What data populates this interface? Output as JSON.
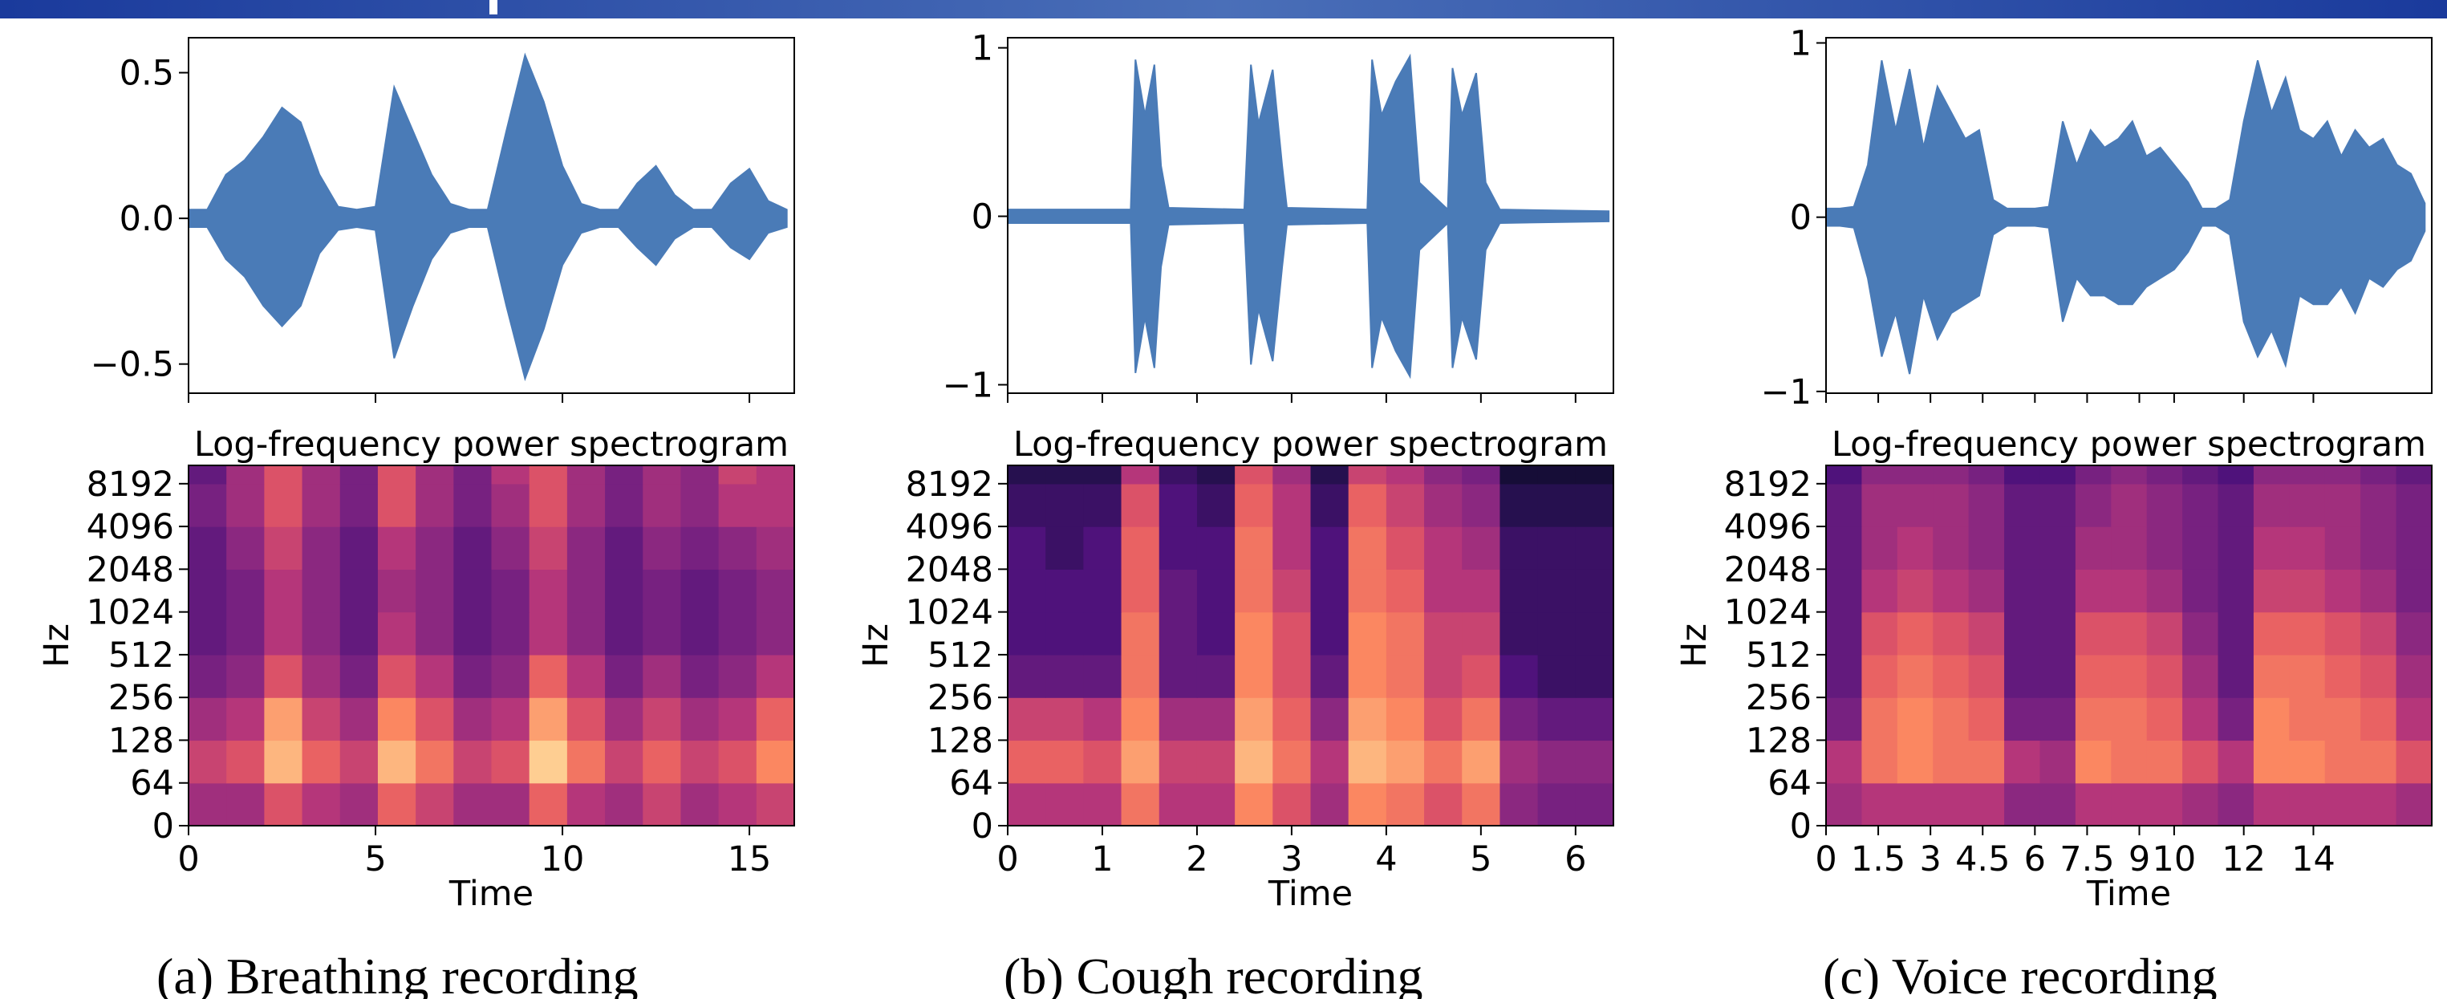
{
  "chart_data": [
    {
      "type": "band",
      "color": "#4a7bb7",
      "x": [
        0,
        0.5,
        1,
        1.5,
        2,
        2.5,
        3,
        3.5,
        4,
        4.5,
        5,
        5.5,
        6,
        6.5,
        7,
        7.5,
        8,
        8.5,
        9,
        9.5,
        10,
        10.5,
        11,
        11.5,
        12,
        12.5,
        13,
        13.5,
        14,
        14.5,
        15,
        15.5,
        16
      ],
      "upper": [
        0.03,
        0.03,
        0.15,
        0.2,
        0.28,
        0.38,
        0.33,
        0.15,
        0.04,
        0.03,
        0.04,
        0.45,
        0.3,
        0.15,
        0.05,
        0.03,
        0.03,
        0.3,
        0.56,
        0.4,
        0.18,
        0.05,
        0.03,
        0.03,
        0.12,
        0.18,
        0.08,
        0.03,
        0.03,
        0.12,
        0.17,
        0.06,
        0.03
      ],
      "lower": [
        -0.03,
        -0.03,
        -0.14,
        -0.2,
        -0.3,
        -0.37,
        -0.3,
        -0.12,
        -0.04,
        -0.03,
        -0.04,
        -0.48,
        -0.3,
        -0.14,
        -0.05,
        -0.03,
        -0.03,
        -0.3,
        -0.55,
        -0.38,
        -0.16,
        -0.05,
        -0.03,
        -0.03,
        -0.1,
        -0.16,
        -0.07,
        -0.03,
        -0.03,
        -0.1,
        -0.14,
        -0.05,
        -0.03
      ],
      "xlim": [
        0,
        16.2
      ],
      "xticks": [
        0,
        5,
        10,
        15
      ],
      "ylim": [
        -0.6,
        0.62
      ],
      "yticks": [
        {
          "value": 0.5,
          "label": "0.5"
        },
        {
          "value": 0,
          "label": "0.0"
        },
        {
          "value": -0.5,
          "label": "−0.5"
        }
      ]
    },
    {
      "type": "heatmap",
      "title": "Log-frequency power spectrogram",
      "xlabel": "Time",
      "ylabel": "Hz",
      "colormap": "magma",
      "xlim": [
        0,
        16.2
      ],
      "xticks": [
        0,
        5,
        10,
        15
      ],
      "ylim": [
        0,
        11025
      ],
      "yscale": "symlog",
      "linthresh": 64,
      "base": 2,
      "yticks": [
        0,
        64,
        128,
        256,
        512,
        1024,
        2048,
        4096,
        8192
      ],
      "z": [
        [
          0.45,
          0.45,
          0.6,
          0.5,
          0.45,
          0.65,
          0.55,
          0.45,
          0.45,
          0.65,
          0.5,
          0.45,
          0.55,
          0.45,
          0.5,
          0.55
        ],
        [
          0.55,
          0.6,
          0.85,
          0.65,
          0.55,
          0.85,
          0.7,
          0.55,
          0.6,
          0.9,
          0.7,
          0.55,
          0.65,
          0.55,
          0.6,
          0.75
        ],
        [
          0.45,
          0.5,
          0.8,
          0.55,
          0.45,
          0.75,
          0.6,
          0.45,
          0.5,
          0.8,
          0.6,
          0.45,
          0.55,
          0.45,
          0.5,
          0.65
        ],
        [
          0.35,
          0.4,
          0.6,
          0.45,
          0.35,
          0.6,
          0.5,
          0.35,
          0.4,
          0.65,
          0.5,
          0.35,
          0.45,
          0.35,
          0.4,
          0.5
        ],
        [
          0.3,
          0.35,
          0.5,
          0.4,
          0.3,
          0.5,
          0.4,
          0.3,
          0.35,
          0.5,
          0.4,
          0.3,
          0.35,
          0.3,
          0.35,
          0.4
        ],
        [
          0.3,
          0.35,
          0.5,
          0.4,
          0.3,
          0.45,
          0.4,
          0.3,
          0.35,
          0.5,
          0.4,
          0.3,
          0.35,
          0.3,
          0.35,
          0.4
        ],
        [
          0.3,
          0.4,
          0.55,
          0.4,
          0.3,
          0.5,
          0.4,
          0.3,
          0.4,
          0.55,
          0.4,
          0.3,
          0.4,
          0.35,
          0.4,
          0.45
        ],
        [
          0.35,
          0.45,
          0.6,
          0.45,
          0.35,
          0.6,
          0.45,
          0.35,
          0.45,
          0.6,
          0.45,
          0.35,
          0.45,
          0.4,
          0.5,
          0.5
        ],
        [
          0.3,
          0.45,
          0.6,
          0.45,
          0.35,
          0.6,
          0.45,
          0.35,
          0.5,
          0.6,
          0.45,
          0.35,
          0.45,
          0.4,
          0.55,
          0.5
        ]
      ]
    },
    {
      "type": "band",
      "color": "#4a7bb7",
      "x": [
        0,
        1.3,
        1.35,
        1.45,
        1.55,
        1.62,
        1.7,
        2.5,
        2.57,
        2.65,
        2.8,
        2.9,
        2.95,
        3.8,
        3.85,
        3.95,
        4.1,
        4.25,
        4.35,
        4.65,
        4.7,
        4.8,
        4.95,
        5.05,
        5.2,
        6.35
      ],
      "upper": [
        0.04,
        0.04,
        0.93,
        0.6,
        0.9,
        0.3,
        0.05,
        0.04,
        0.9,
        0.55,
        0.87,
        0.3,
        0.05,
        0.04,
        0.93,
        0.6,
        0.8,
        0.95,
        0.2,
        0.04,
        0.88,
        0.6,
        0.85,
        0.2,
        0.04,
        0.03
      ],
      "lower": [
        -0.04,
        -0.04,
        -0.93,
        -0.6,
        -0.9,
        -0.3,
        -0.05,
        -0.04,
        -0.88,
        -0.55,
        -0.86,
        -0.3,
        -0.05,
        -0.04,
        -0.9,
        -0.6,
        -0.8,
        -0.95,
        -0.2,
        -0.04,
        -0.9,
        -0.6,
        -0.85,
        -0.2,
        -0.04,
        -0.03
      ],
      "xlim": [
        0,
        6.4
      ],
      "xticks": [
        0,
        1,
        2,
        3,
        4,
        5,
        6
      ],
      "ylim": [
        -1.05,
        1.06
      ],
      "yticks": [
        1,
        0,
        {
          "value": -1,
          "label": "−1"
        }
      ]
    },
    {
      "type": "heatmap",
      "title": "Log-frequency power spectrogram",
      "xlabel": "Time",
      "ylabel": "Hz",
      "colormap": "magma",
      "xlim": [
        0,
        6.4
      ],
      "xticks": [
        0,
        1,
        2,
        3,
        4,
        5,
        6
      ],
      "ylim": [
        0,
        11025
      ],
      "yscale": "symlog",
      "linthresh": 64,
      "base": 2,
      "yticks": [
        0,
        64,
        128,
        256,
        512,
        1024,
        2048,
        4096,
        8192
      ],
      "z": [
        [
          0.5,
          0.5,
          0.5,
          0.7,
          0.5,
          0.5,
          0.75,
          0.6,
          0.45,
          0.75,
          0.7,
          0.6,
          0.7,
          0.4,
          0.35,
          0.35
        ],
        [
          0.65,
          0.65,
          0.6,
          0.8,
          0.55,
          0.55,
          0.85,
          0.7,
          0.5,
          0.85,
          0.8,
          0.7,
          0.8,
          0.45,
          0.4,
          0.4
        ],
        [
          0.55,
          0.55,
          0.5,
          0.75,
          0.45,
          0.45,
          0.8,
          0.65,
          0.4,
          0.8,
          0.75,
          0.6,
          0.7,
          0.35,
          0.3,
          0.3
        ],
        [
          0.3,
          0.3,
          0.3,
          0.7,
          0.3,
          0.3,
          0.75,
          0.6,
          0.3,
          0.75,
          0.7,
          0.55,
          0.6,
          0.25,
          0.2,
          0.2
        ],
        [
          0.25,
          0.25,
          0.25,
          0.7,
          0.3,
          0.25,
          0.75,
          0.6,
          0.25,
          0.75,
          0.7,
          0.55,
          0.55,
          0.2,
          0.2,
          0.2
        ],
        [
          0.25,
          0.25,
          0.25,
          0.65,
          0.3,
          0.25,
          0.7,
          0.55,
          0.25,
          0.7,
          0.65,
          0.5,
          0.5,
          0.2,
          0.2,
          0.2
        ],
        [
          0.25,
          0.2,
          0.25,
          0.65,
          0.25,
          0.25,
          0.7,
          0.5,
          0.25,
          0.7,
          0.6,
          0.5,
          0.45,
          0.2,
          0.2,
          0.2
        ],
        [
          0.2,
          0.2,
          0.2,
          0.6,
          0.25,
          0.2,
          0.65,
          0.5,
          0.2,
          0.65,
          0.55,
          0.45,
          0.4,
          0.15,
          0.15,
          0.15
        ],
        [
          0.15,
          0.15,
          0.15,
          0.5,
          0.2,
          0.15,
          0.6,
          0.45,
          0.15,
          0.55,
          0.5,
          0.4,
          0.35,
          0.1,
          0.1,
          0.1
        ]
      ]
    },
    {
      "type": "band",
      "color": "#4a7bb7",
      "x": [
        0,
        0.4,
        0.8,
        1.2,
        1.6,
        2,
        2.4,
        2.8,
        3.2,
        3.6,
        4,
        4.4,
        4.8,
        5.2,
        5.6,
        6,
        6.4,
        6.8,
        7.2,
        7.6,
        8,
        8.4,
        8.8,
        9.2,
        9.6,
        10,
        10.4,
        10.8,
        11.2,
        11.6,
        12,
        12.4,
        12.8,
        13.2,
        13.6,
        14,
        14.4,
        14.8,
        15.2,
        15.6,
        16,
        16.4,
        16.8,
        17.2
      ],
      "upper": [
        0.05,
        0.05,
        0.06,
        0.3,
        0.9,
        0.5,
        0.85,
        0.4,
        0.75,
        0.6,
        0.45,
        0.5,
        0.1,
        0.05,
        0.05,
        0.05,
        0.06,
        0.55,
        0.3,
        0.5,
        0.4,
        0.45,
        0.55,
        0.35,
        0.4,
        0.3,
        0.2,
        0.05,
        0.05,
        0.1,
        0.55,
        0.9,
        0.6,
        0.8,
        0.5,
        0.45,
        0.55,
        0.35,
        0.5,
        0.4,
        0.45,
        0.3,
        0.25,
        0.08
      ],
      "lower": [
        -0.05,
        -0.05,
        -0.06,
        -0.35,
        -0.8,
        -0.55,
        -0.9,
        -0.45,
        -0.7,
        -0.55,
        -0.5,
        -0.45,
        -0.1,
        -0.05,
        -0.05,
        -0.05,
        -0.06,
        -0.6,
        -0.35,
        -0.45,
        -0.45,
        -0.5,
        -0.5,
        -0.4,
        -0.35,
        -0.3,
        -0.2,
        -0.05,
        -0.05,
        -0.1,
        -0.6,
        -0.8,
        -0.65,
        -0.85,
        -0.45,
        -0.5,
        -0.5,
        -0.4,
        -0.55,
        -0.35,
        -0.4,
        -0.3,
        -0.25,
        -0.08
      ],
      "xlim": [
        0,
        17.4
      ],
      "xticks": [
        0,
        1.5,
        3,
        4.5,
        6,
        7.5,
        9,
        10,
        12,
        14
      ],
      "ylim": [
        -1.01,
        1.03
      ],
      "yticks": [
        1,
        0,
        {
          "value": -1,
          "label": "−1"
        }
      ]
    },
    {
      "type": "heatmap",
      "title": "Log-frequency power spectrogram",
      "xlabel": "Time",
      "ylabel": "Hz",
      "colormap": "magma",
      "xlim": [
        0,
        17.4
      ],
      "xticks": [
        0,
        1.5,
        3,
        4.5,
        6,
        7.5,
        9,
        10,
        12,
        14
      ],
      "ylim": [
        0,
        11025
      ],
      "yscale": "symlog",
      "linthresh": 64,
      "base": 2,
      "yticks": [
        0,
        64,
        128,
        256,
        512,
        1024,
        2048,
        4096,
        8192
      ],
      "z": [
        [
          0.45,
          0.5,
          0.5,
          0.5,
          0.5,
          0.4,
          0.4,
          0.5,
          0.5,
          0.5,
          0.45,
          0.4,
          0.5,
          0.5,
          0.5,
          0.5,
          0.45
        ],
        [
          0.5,
          0.7,
          0.75,
          0.7,
          0.7,
          0.5,
          0.45,
          0.75,
          0.7,
          0.7,
          0.6,
          0.5,
          0.75,
          0.75,
          0.7,
          0.7,
          0.6
        ],
        [
          0.35,
          0.7,
          0.75,
          0.7,
          0.65,
          0.35,
          0.35,
          0.7,
          0.7,
          0.65,
          0.5,
          0.35,
          0.75,
          0.7,
          0.7,
          0.65,
          0.5
        ],
        [
          0.3,
          0.65,
          0.7,
          0.65,
          0.6,
          0.3,
          0.3,
          0.65,
          0.65,
          0.6,
          0.45,
          0.3,
          0.7,
          0.7,
          0.65,
          0.6,
          0.45
        ],
        [
          0.3,
          0.6,
          0.65,
          0.6,
          0.55,
          0.3,
          0.3,
          0.6,
          0.6,
          0.55,
          0.4,
          0.3,
          0.65,
          0.65,
          0.6,
          0.55,
          0.4
        ],
        [
          0.3,
          0.5,
          0.55,
          0.5,
          0.45,
          0.3,
          0.3,
          0.5,
          0.5,
          0.45,
          0.35,
          0.3,
          0.55,
          0.55,
          0.5,
          0.45,
          0.35
        ],
        [
          0.3,
          0.45,
          0.5,
          0.45,
          0.4,
          0.3,
          0.3,
          0.45,
          0.45,
          0.4,
          0.35,
          0.3,
          0.5,
          0.5,
          0.45,
          0.4,
          0.35
        ],
        [
          0.3,
          0.45,
          0.45,
          0.45,
          0.4,
          0.3,
          0.3,
          0.4,
          0.45,
          0.4,
          0.35,
          0.3,
          0.45,
          0.45,
          0.45,
          0.4,
          0.35
        ],
        [
          0.25,
          0.4,
          0.4,
          0.4,
          0.35,
          0.25,
          0.25,
          0.35,
          0.4,
          0.35,
          0.3,
          0.25,
          0.4,
          0.4,
          0.4,
          0.35,
          0.3
        ]
      ]
    }
  ],
  "captions": [
    "(a) Breathing recording",
    "(b) Cough recording",
    "(c) Voice recording"
  ]
}
